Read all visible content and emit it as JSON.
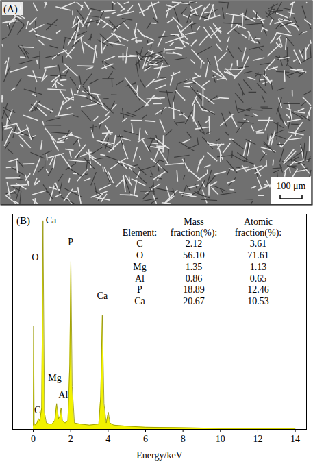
{
  "panel_a": {
    "label": "(A)",
    "scale_bar": "100 μm"
  },
  "chart_data": {
    "type": "area",
    "panel_label": "(B)",
    "x_label": "Energy/keV",
    "x": [
      0,
      0.02,
      0.05,
      0.1,
      0.2,
      0.28,
      0.35,
      0.45,
      0.52,
      0.6,
      0.7,
      0.85,
      1.0,
      1.15,
      1.25,
      1.35,
      1.42,
      1.49,
      1.56,
      1.7,
      1.85,
      1.95,
      2.01,
      2.08,
      2.2,
      2.5,
      3.0,
      3.5,
      3.6,
      3.69,
      3.78,
      3.9,
      4.01,
      4.1,
      4.3,
      5,
      6,
      8,
      10,
      12,
      14
    ],
    "values": [
      2,
      48,
      3,
      2,
      3,
      5,
      4,
      10,
      97,
      8,
      3,
      2.5,
      2.5,
      4,
      12,
      5,
      6,
      10,
      4,
      3,
      4,
      30,
      78,
      20,
      3,
      2.5,
      2,
      2.5,
      15,
      53,
      12,
      3,
      8,
      3,
      2,
      1.5,
      1,
      0.8,
      0.5,
      0.5,
      0.5
    ],
    "color": "#f2f200",
    "xlim": [
      -1.1,
      14.6
    ],
    "xticks": [
      0,
      2,
      4,
      6,
      8,
      10,
      12,
      14
    ],
    "ylim": [
      0,
      100
    ],
    "yticks": [],
    "tick_labels": "x",
    "annotations": [
      {
        "text": "Ca",
        "x": 0.95,
        "y": 97
      },
      {
        "text": "O",
        "x": 0.1,
        "y": 80
      },
      {
        "text": "P",
        "x": 2.0,
        "y": 87
      },
      {
        "text": "Ca",
        "x": 3.69,
        "y": 62
      },
      {
        "text": "Mg",
        "x": 1.15,
        "y": 24
      },
      {
        "text": "Al",
        "x": 1.6,
        "y": 16
      },
      {
        "text": "C",
        "x": 0.22,
        "y": 9
      }
    ],
    "table": {
      "columns": [
        "Element:",
        "Mass fraction(%):",
        "Atomic fraction(%):"
      ],
      "rows": [
        [
          "C",
          "2.12",
          "3.61"
        ],
        [
          "O",
          "56.10",
          "71.61"
        ],
        [
          "Mg",
          "1.35",
          "1.13"
        ],
        [
          "Al",
          "0.86",
          "0.65"
        ],
        [
          "P",
          "18.89",
          "12.46"
        ],
        [
          "Ca",
          "20.67",
          "10.53"
        ]
      ]
    }
  }
}
